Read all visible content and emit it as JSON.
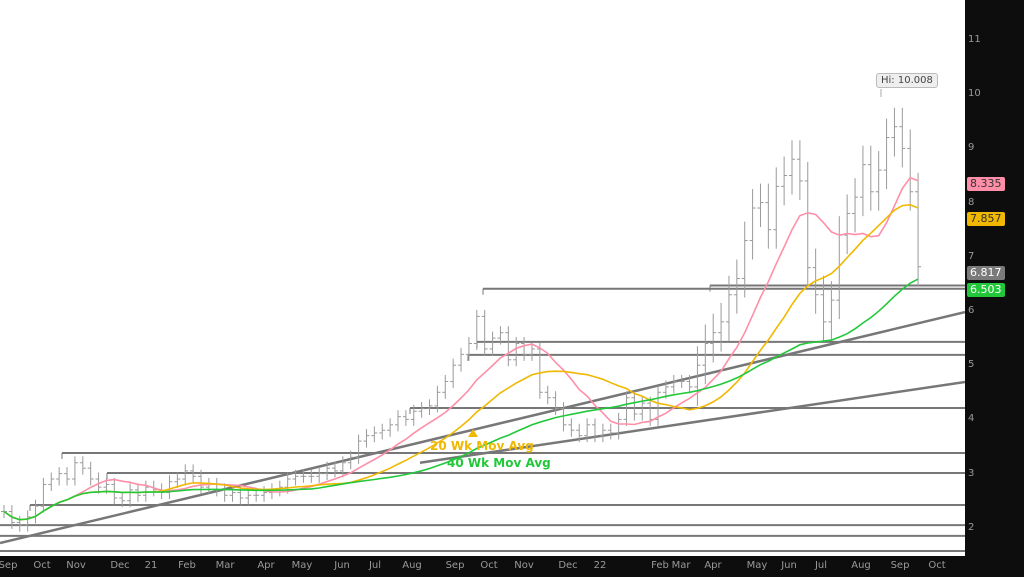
{
  "chart_data": {
    "type": "ohlc-bar",
    "ylim": [
      1.7,
      11.3
    ],
    "y_ticks": [
      "11",
      "10",
      "9",
      "8",
      "7",
      "6",
      "5",
      "4",
      "3",
      "2"
    ],
    "x_ticks": [
      "Sep",
      "Oct",
      "Nov",
      "Dec",
      "21",
      "Feb",
      "Mar",
      "Apr",
      "May",
      "Jun",
      "Jul",
      "Aug",
      "Sep",
      "Oct",
      "Nov",
      "Dec",
      "22",
      "Feb",
      "Mar",
      "Apr",
      "May",
      "Jun",
      "Jul",
      "Aug",
      "Sep",
      "Oct"
    ],
    "weekly_close": [
      2.3,
      2.1,
      2.05,
      2.2,
      2.4,
      2.8,
      2.9,
      3.0,
      2.9,
      3.2,
      3.1,
      2.9,
      2.75,
      2.8,
      2.55,
      2.5,
      2.7,
      2.6,
      2.75,
      2.7,
      2.65,
      2.85,
      2.9,
      3.05,
      2.95,
      2.75,
      2.8,
      2.7,
      2.6,
      2.65,
      2.55,
      2.6,
      2.6,
      2.65,
      2.7,
      2.75,
      2.9,
      2.95,
      2.95,
      2.95,
      3.0,
      3.1,
      3.05,
      3.2,
      3.3,
      3.6,
      3.7,
      3.75,
      3.8,
      3.9,
      4.05,
      4.0,
      4.15,
      4.2,
      4.25,
      4.5,
      4.7,
      5.0,
      5.2,
      5.4,
      5.9,
      5.3,
      5.5,
      5.6,
      5.1,
      5.4,
      5.2,
      5.3,
      4.5,
      4.4,
      4.2,
      3.9,
      3.8,
      3.7,
      3.9,
      3.7,
      3.8,
      3.75,
      4.0,
      4.4,
      4.1,
      4.3,
      4.0,
      4.5,
      4.6,
      4.7,
      4.7,
      4.6,
      5.0,
      5.4,
      5.6,
      5.8,
      6.3,
      6.6,
      7.3,
      7.9,
      8.0,
      7.5,
      8.3,
      8.5,
      8.8,
      8.4,
      6.8,
      6.3,
      5.8,
      6.2,
      7.4,
      7.8,
      8.1,
      8.7,
      8.2,
      8.6,
      9.2,
      9.4,
      9.0,
      8.2,
      6.817
    ],
    "moving_averages": [
      {
        "name": "",
        "period": 10,
        "color": "#ff8fa8",
        "last": "8.335"
      },
      {
        "name": "20 Wk Mov Avg",
        "period": 20,
        "color": "#f0b800",
        "last": "7.857"
      },
      {
        "name": "40 Wk Mov Avg",
        "period": 40,
        "color": "#22c83a",
        "last": "6.503"
      }
    ],
    "last_price": "6.817",
    "high_callout": "Hi: 10.008",
    "horizontal_levels": [
      6.41,
      6.47,
      5.43,
      5.19,
      4.21,
      3.38,
      3.01,
      2.42,
      2.05,
      1.85
    ],
    "trendlines": [
      [
        1.72,
        5.98
      ],
      [
        3.2,
        4.69
      ]
    ],
    "colors": {
      "bars": "#9a9a9a",
      "levels": "#777777",
      "axis_bg": "#0d0d0d",
      "last_price_tag": "#7a7a7a"
    }
  }
}
